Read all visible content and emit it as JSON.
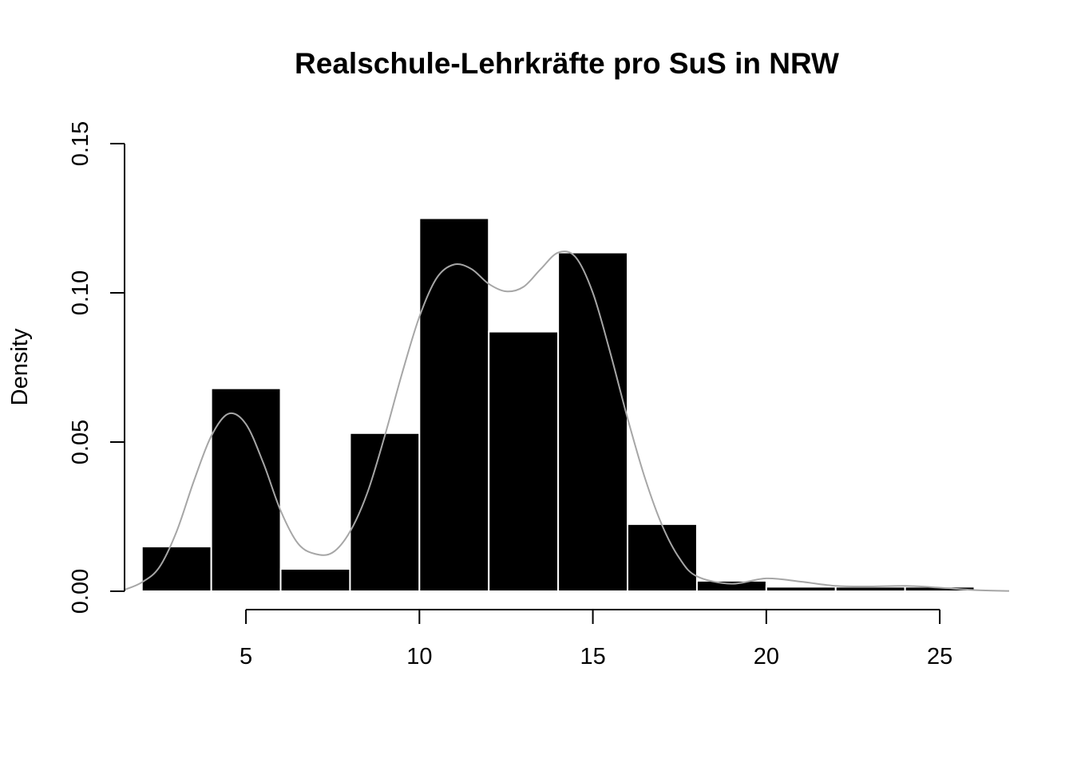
{
  "chart_data": {
    "type": "histogram",
    "title": "Realschule-Lehrkräfte pro SuS in NRW",
    "xlabel": "",
    "ylabel": "Density",
    "xlim": [
      1.5,
      27
    ],
    "ylim": [
      0,
      0.15
    ],
    "x_ticks": [
      5,
      10,
      15,
      20,
      25
    ],
    "y_ticks": [
      0.0,
      0.05,
      0.1,
      0.15
    ],
    "x_tick_labels": [
      "5",
      "10",
      "15",
      "20",
      "25"
    ],
    "y_tick_labels": [
      "0.00",
      "0.05",
      "0.10",
      "0.15"
    ],
    "bins": [
      {
        "from": 2,
        "to": 4,
        "density": 0.015
      },
      {
        "from": 4,
        "to": 6,
        "density": 0.068
      },
      {
        "from": 6,
        "to": 8,
        "density": 0.0075
      },
      {
        "from": 8,
        "to": 10,
        "density": 0.053
      },
      {
        "from": 10,
        "to": 12,
        "density": 0.125
      },
      {
        "from": 12,
        "to": 14,
        "density": 0.087
      },
      {
        "from": 14,
        "to": 16,
        "density": 0.1135
      },
      {
        "from": 16,
        "to": 18,
        "density": 0.0225
      },
      {
        "from": 18,
        "to": 20,
        "density": 0.0035
      },
      {
        "from": 20,
        "to": 22,
        "density": 0.0015
      },
      {
        "from": 22,
        "to": 24,
        "density": 0.0015
      },
      {
        "from": 24,
        "to": 26,
        "density": 0.0015
      }
    ],
    "density_curve": {
      "x": [
        1.5,
        2,
        2.5,
        3,
        3.5,
        4,
        4.5,
        5,
        5.5,
        6,
        6.5,
        7,
        7.5,
        8,
        8.5,
        9,
        9.5,
        10,
        10.5,
        11,
        11.5,
        12,
        12.5,
        13,
        13.5,
        14,
        14.5,
        15,
        15.5,
        16,
        16.5,
        17,
        17.5,
        18,
        19,
        20,
        21,
        22,
        23,
        24,
        25,
        26,
        27
      ],
      "y": [
        0.0005,
        0.003,
        0.008,
        0.02,
        0.037,
        0.052,
        0.0595,
        0.056,
        0.043,
        0.027,
        0.016,
        0.0125,
        0.013,
        0.02,
        0.033,
        0.052,
        0.073,
        0.092,
        0.105,
        0.1095,
        0.108,
        0.103,
        0.1005,
        0.102,
        0.108,
        0.1135,
        0.112,
        0.1,
        0.08,
        0.058,
        0.038,
        0.022,
        0.011,
        0.005,
        0.0025,
        0.0043,
        0.0032,
        0.0018,
        0.0016,
        0.0018,
        0.0012,
        0.0004,
        0.0001
      ]
    },
    "colors": {
      "bars": "#000000",
      "bar_border": "#ffffff",
      "density_line": "#a6a6a6"
    },
    "grid": false,
    "legend": "none"
  }
}
